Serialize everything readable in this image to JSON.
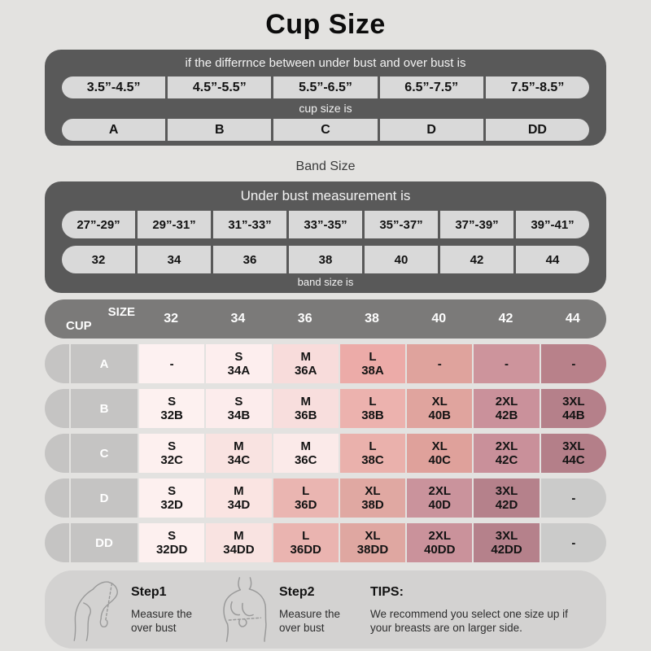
{
  "chart_data": [
    {
      "type": "table",
      "title": "Cup Size",
      "header": "if the differrnce between under bust and over bust is",
      "categories": [
        "3.5”-4.5”",
        "4.5”-5.5”",
        "5.5”-6.5”",
        "6.5”-7.5”",
        "7.5”-8.5”"
      ],
      "mid_label": "cup size is",
      "values": [
        "A",
        "B",
        "C",
        "D",
        "DD"
      ]
    },
    {
      "type": "table",
      "title": "Band Size",
      "header": "Under bust measurement is",
      "categories": [
        "27”-29”",
        "29”-31”",
        "31”-33”",
        "33”-35”",
        "35”-37”",
        "37”-39”",
        "39”-41”"
      ],
      "values": [
        "32",
        "34",
        "36",
        "38",
        "40",
        "42",
        "44"
      ],
      "bottom_label": "band size is"
    },
    {
      "type": "table",
      "title": "Size by cup and band",
      "corner_top": "SIZE",
      "corner_bottom": "CUP",
      "columns": [
        "32",
        "34",
        "36",
        "38",
        "40",
        "42",
        "44"
      ],
      "rows": [
        {
          "label": "A",
          "cells": [
            {
              "size": "-",
              "code": "",
              "bg": "#fdf1f1"
            },
            {
              "size": "S",
              "code": "34A",
              "bg": "#fdeeee"
            },
            {
              "size": "M",
              "code": "36A",
              "bg": "#f8dcdb"
            },
            {
              "size": "L",
              "code": "38A",
              "bg": "#ecaba8"
            },
            {
              "size": "-",
              "code": "",
              "bg": "#dfa39d"
            },
            {
              "size": "-",
              "code": "",
              "bg": "#cd949c"
            },
            {
              "size": "-",
              "code": "",
              "bg": "#b8818a"
            }
          ]
        },
        {
          "label": "B",
          "cells": [
            {
              "size": "S",
              "code": "32B",
              "bg": "#fdf1f0"
            },
            {
              "size": "S",
              "code": "34B",
              "bg": "#fcecec"
            },
            {
              "size": "M",
              "code": "36B",
              "bg": "#f8dedd"
            },
            {
              "size": "L",
              "code": "38B",
              "bg": "#ecb2ae"
            },
            {
              "size": "XL",
              "code": "40B",
              "bg": "#e0a49e"
            },
            {
              "size": "2XL",
              "code": "42B",
              "bg": "#ca919b"
            },
            {
              "size": "3XL",
              "code": "44B",
              "bg": "#b5808a"
            }
          ]
        },
        {
          "label": "C",
          "cells": [
            {
              "size": "S",
              "code": "32C",
              "bg": "#fdf0ef"
            },
            {
              "size": "M",
              "code": "34C",
              "bg": "#f9e3e1"
            },
            {
              "size": "M",
              "code": "36C",
              "bg": "#fbeae9"
            },
            {
              "size": "L",
              "code": "38C",
              "bg": "#eab1ac"
            },
            {
              "size": "XL",
              "code": "40C",
              "bg": "#dfa19b"
            },
            {
              "size": "2XL",
              "code": "42C",
              "bg": "#c9909a"
            },
            {
              "size": "3XL",
              "code": "44C",
              "bg": "#b47f89"
            }
          ]
        },
        {
          "label": "D",
          "cells": [
            {
              "size": "S",
              "code": "32D",
              "bg": "#fdf0ef"
            },
            {
              "size": "M",
              "code": "34D",
              "bg": "#fae4e2"
            },
            {
              "size": "L",
              "code": "36D",
              "bg": "#eab5b1"
            },
            {
              "size": "XL",
              "code": "38D",
              "bg": "#e0a8a2"
            },
            {
              "size": "2XL",
              "code": "40D",
              "bg": "#ca939c"
            },
            {
              "size": "3XL",
              "code": "42D",
              "bg": "#b5818b"
            },
            {
              "size": "-",
              "code": "",
              "bg": "#cbcbca"
            }
          ]
        },
        {
          "label": "DD",
          "cells": [
            {
              "size": "S",
              "code": "32DD",
              "bg": "#fdf0ef"
            },
            {
              "size": "M",
              "code": "34DD",
              "bg": "#f9e3e1"
            },
            {
              "size": "L",
              "code": "36DD",
              "bg": "#eab4b0"
            },
            {
              "size": "XL",
              "code": "38DD",
              "bg": "#dfa7a1"
            },
            {
              "size": "2XL",
              "code": "40DD",
              "bg": "#ca929b"
            },
            {
              "size": "3XL",
              "code": "42DD",
              "bg": "#b5818b"
            },
            {
              "size": "-",
              "code": "",
              "bg": "#cbcbca"
            }
          ]
        }
      ]
    }
  ],
  "footer": {
    "steps": [
      {
        "title": "Step1",
        "desc": "Measure the\nover bust"
      },
      {
        "title": "Step2",
        "desc": "Measure the\nover bust"
      }
    ],
    "tips_title": "TIPS:",
    "tips_text": "We recommend you select one size up if your breasts are on larger side."
  },
  "colors": {
    "page_bg": "#e3e2e0",
    "panel_dark": "#595959",
    "panel_cell": "#d9d9d9",
    "matrix_header": "#7b7a79",
    "row_label_gray": "#c5c4c3",
    "na_cell_gray": "#cbcbca",
    "footer_bg": "#d3d2d1"
  }
}
